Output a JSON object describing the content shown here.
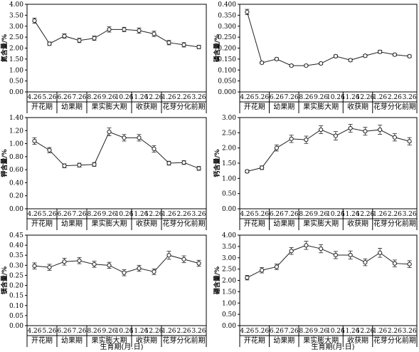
{
  "x_title": "生育期(月.日)",
  "chart_data": [
    {
      "type": "line",
      "ylabel": "氮含量/%",
      "ylim": [
        0,
        4.0
      ],
      "yticks": [
        "0.00",
        "0.50",
        "1.00",
        "1.50",
        "2.00",
        "2.50",
        "3.00",
        "3.50",
        "4.00"
      ],
      "categories": [
        "4.26",
        "5.26",
        "6.26",
        "7.26",
        "8.26",
        "9.26",
        "10.26",
        "11.26",
        "12.26",
        "1.26",
        "2.26",
        "3.26"
      ],
      "values": [
        3.25,
        2.2,
        2.55,
        2.35,
        2.45,
        2.85,
        2.85,
        2.8,
        2.65,
        2.25,
        2.15,
        2.05
      ],
      "errors": [
        0.12,
        0.08,
        0.1,
        0.1,
        0.1,
        0.12,
        0.1,
        0.12,
        0.12,
        0.1,
        0.1,
        0.08
      ],
      "stages": [
        "开花期",
        "幼果期",
        "果实膨大期",
        "收获期",
        "花芽分化前期"
      ]
    },
    {
      "type": "line",
      "ylabel": "磷含量/%",
      "ylim": [
        0,
        0.4
      ],
      "yticks": [
        "0.000",
        "0.050",
        "0.100",
        "0.150",
        "0.200",
        "0.250",
        "0.300",
        "0.350",
        "0.400"
      ],
      "categories": [
        "4.26",
        "5.26",
        "6.26",
        "7.26",
        "8.26",
        "9.26",
        "10.26",
        "11.26",
        "12.26",
        "1.26",
        "2.26",
        "3.26"
      ],
      "values": [
        0.365,
        0.133,
        0.15,
        0.12,
        0.12,
        0.13,
        0.163,
        0.145,
        0.165,
        0.183,
        0.17,
        0.163
      ],
      "errors": [
        0.012,
        0.005,
        0.006,
        0.005,
        0.004,
        0.005,
        0.006,
        0.006,
        0.006,
        0.007,
        0.006,
        0.006
      ],
      "stages": [
        "开花期",
        "幼果期",
        "果实膨大期",
        "收获期",
        "花芽分化前期"
      ]
    },
    {
      "type": "line",
      "ylabel": "钾含量/%",
      "ylim": [
        0,
        1.4
      ],
      "yticks": [
        "0.00",
        "0.20",
        "0.40",
        "0.60",
        "0.80",
        "1.00",
        "1.20",
        "1.40"
      ],
      "categories": [
        "4.26",
        "5.26",
        "6.26",
        "7.26",
        "8.26",
        "9.26",
        "10.26",
        "11.26",
        "12.26",
        "1.26",
        "2.26",
        "3.26"
      ],
      "values": [
        1.04,
        0.9,
        0.66,
        0.67,
        0.68,
        1.18,
        1.09,
        1.09,
        0.92,
        0.7,
        0.71,
        0.62
      ],
      "errors": [
        0.05,
        0.04,
        0.03,
        0.03,
        0.03,
        0.06,
        0.05,
        0.05,
        0.05,
        0.03,
        0.03,
        0.03
      ],
      "stages": [
        "开花期",
        "幼果期",
        "果实膨大期",
        "收获期",
        "花芽分化前期"
      ]
    },
    {
      "type": "line",
      "ylabel": "钙含量/%",
      "ylim": [
        0,
        3.0
      ],
      "yticks": [
        "0.00",
        "0.50",
        "1.00",
        "1.50",
        "2.00",
        "2.50",
        "3.00"
      ],
      "categories": [
        "4.26",
        "5.26",
        "6.26",
        "7.26",
        "8.26",
        "9.26",
        "10.26",
        "11.26",
        "12.26",
        "1.26",
        "2.26",
        "3.26"
      ],
      "values": [
        1.23,
        1.35,
        2.0,
        2.3,
        2.27,
        2.6,
        2.4,
        2.65,
        2.55,
        2.6,
        2.35,
        2.22
      ],
      "errors": [
        0.05,
        0.06,
        0.1,
        0.12,
        0.12,
        0.13,
        0.14,
        0.13,
        0.13,
        0.15,
        0.12,
        0.12
      ],
      "stages": [
        "开花期",
        "幼果期",
        "果实膨大期",
        "收获期",
        "花芽分化前期"
      ]
    },
    {
      "type": "line",
      "ylabel": "镁含量/%",
      "ylim": [
        0,
        0.45
      ],
      "yticks": [
        "0.00",
        "0.05",
        "0.10",
        "0.15",
        "0.20",
        "0.25",
        "0.30",
        "0.35",
        "0.40",
        "0.45"
      ],
      "categories": [
        "4.26",
        "5.26",
        "6.26",
        "7.26",
        "8.26",
        "9.26",
        "10.26",
        "11.26",
        "12.26",
        "1.26",
        "2.26",
        "3.26"
      ],
      "values": [
        0.297,
        0.29,
        0.318,
        0.323,
        0.305,
        0.3,
        0.263,
        0.285,
        0.268,
        0.35,
        0.33,
        0.31
      ],
      "errors": [
        0.015,
        0.015,
        0.017,
        0.015,
        0.015,
        0.015,
        0.015,
        0.015,
        0.014,
        0.02,
        0.017,
        0.015
      ],
      "stages": [
        "开花期",
        "幼果期",
        "果实膨大期",
        "收获期",
        "花芽分化前期"
      ]
    },
    {
      "type": "line",
      "ylabel": "硼含量/%",
      "ylim": [
        0,
        4.0
      ],
      "yticks": [
        "0.00",
        "0.50",
        "1.00",
        "1.50",
        "2.00",
        "2.50",
        "3.00",
        "3.50",
        "4.00"
      ],
      "categories": [
        "4.26",
        "5.26",
        "6.26",
        "7.26",
        "8.26",
        "9.26",
        "10.26",
        "11.26",
        "12.26",
        "1.26",
        "2.26",
        "3.26"
      ],
      "values": [
        2.12,
        2.45,
        2.6,
        3.3,
        3.55,
        3.4,
        3.12,
        3.12,
        2.8,
        3.22,
        2.75,
        2.72
      ],
      "errors": [
        0.1,
        0.12,
        0.12,
        0.15,
        0.18,
        0.18,
        0.16,
        0.18,
        0.15,
        0.2,
        0.15,
        0.15
      ],
      "stages": [
        "开花期",
        "幼果期",
        "果实膨大期",
        "收获期",
        "花芽分化前期"
      ]
    }
  ]
}
